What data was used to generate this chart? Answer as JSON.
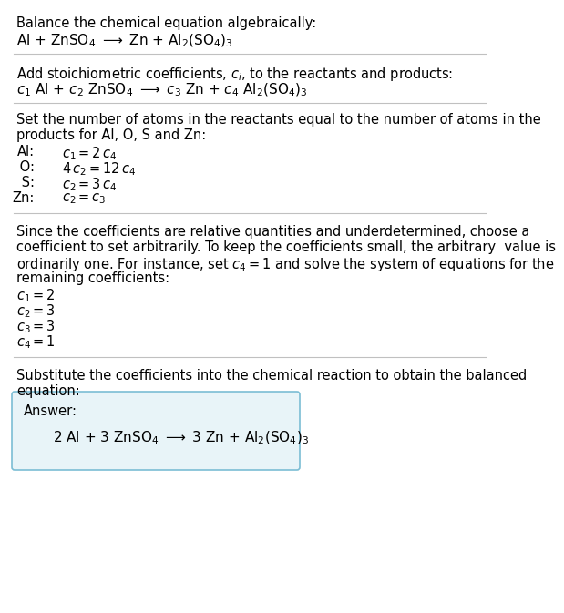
{
  "bg_color": "#ffffff",
  "text_color": "#000000",
  "answer_box_facecolor": "#e8f4f8",
  "answer_box_edgecolor": "#7bbdd4",
  "divider_color": "#c0c0c0",
  "font_size": 10.5,
  "sections": {
    "s1_line1": "Balance the chemical equation algebraically:",
    "s1_line2": "Al + ZnSO$_4$ $\\longrightarrow$ Zn + Al$_2$(SO$_4$)$_3$",
    "s2_line1": "Add stoichiometric coefficients, $c_i$, to the reactants and products:",
    "s2_line2": "$c_1$ Al + $c_2$ ZnSO$_4$ $\\longrightarrow$ $c_3$ Zn + $c_4$ Al$_2$(SO$_4$)$_3$",
    "s3_intro1": "Set the number of atoms in the reactants equal to the number of atoms in the",
    "s3_intro2": "products for Al, O, S and Zn:",
    "s3_eqs": [
      [
        "Al:",
        "$c_1 = 2\\,c_4$"
      ],
      [
        " O:",
        "$4\\,c_2 = 12\\,c_4$"
      ],
      [
        " S:",
        "$c_2 = 3\\,c_4$"
      ],
      [
        "Zn:",
        "$c_2 = c_3$"
      ]
    ],
    "s4_intro1": "Since the coefficients are relative quantities and underdetermined, choose a",
    "s4_intro2": "coefficient to set arbitrarily. To keep the coefficients small, the arbitrary  value is",
    "s4_intro3": "ordinarily one. For instance, set $c_4 = 1$ and solve the system of equations for the",
    "s4_intro4": "remaining coefficients:",
    "s4_results": [
      "$c_1 = 2$",
      "$c_2 = 3$",
      "$c_3 = 3$",
      "$c_4 = 1$"
    ],
    "s5_intro1": "Substitute the coefficients into the chemical reaction to obtain the balanced",
    "s5_intro2": "equation:",
    "s5_answer_label": "Answer:",
    "s5_answer_eq": "2 Al + 3 ZnSO$_4$ $\\longrightarrow$ 3 Zn + Al$_2$(SO$_4$)$_3$"
  }
}
